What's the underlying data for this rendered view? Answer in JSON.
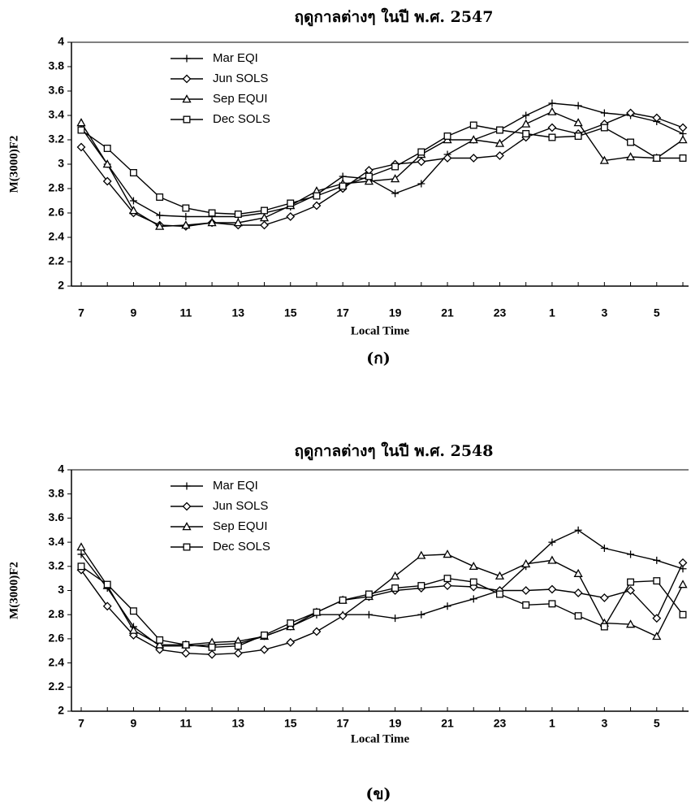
{
  "chart_data": [
    {
      "type": "line",
      "title": "ฤดูกาลต่างๆ ในปี พ.ศ. 2547",
      "caption": "(ก)",
      "x_label": "Local Time",
      "y_label": "M(3000)F2",
      "categories": [
        "7",
        null,
        "9",
        null,
        "11",
        null,
        "13",
        null,
        "15",
        null,
        "17",
        null,
        "19",
        null,
        "21",
        null,
        "23",
        null,
        "1",
        null,
        "3",
        null,
        "5",
        null
      ],
      "ylim": [
        2,
        4
      ],
      "yticks": [
        2,
        2.2,
        2.4,
        2.6,
        2.8,
        3,
        3.2,
        3.4,
        3.6,
        3.8,
        4
      ],
      "grid": false,
      "legend": "upper left",
      "series": [
        {
          "name": "Mar EQI",
          "color": "#000000",
          "marker": "plus",
          "values": [
            3.3,
            3.0,
            2.7,
            2.58,
            2.57,
            2.57,
            2.57,
            2.6,
            2.65,
            2.75,
            2.9,
            2.88,
            2.76,
            2.84,
            3.08,
            3.2,
            3.28,
            3.4,
            3.5,
            3.48,
            3.42,
            3.4,
            3.35,
            3.25
          ]
        },
        {
          "name": "Jun SOLS",
          "color": "#000000",
          "marker": "diamond",
          "values": [
            3.14,
            2.86,
            2.6,
            2.5,
            2.49,
            2.52,
            2.5,
            2.5,
            2.57,
            2.66,
            2.8,
            2.95,
            3.0,
            3.02,
            3.05,
            3.05,
            3.07,
            3.22,
            3.3,
            3.25,
            3.33,
            3.42,
            3.38,
            3.3
          ]
        },
        {
          "name": "Sep EQUI",
          "color": "#000000",
          "marker": "triangle",
          "values": [
            3.34,
            3.0,
            2.62,
            2.49,
            2.5,
            2.52,
            2.52,
            2.56,
            2.66,
            2.78,
            2.84,
            2.86,
            2.88,
            3.08,
            3.2,
            3.2,
            3.17,
            3.33,
            3.43,
            3.34,
            3.03,
            3.06,
            3.05,
            3.2
          ]
        },
        {
          "name": "Dec SOLS",
          "color": "#000000",
          "marker": "square",
          "values": [
            3.28,
            3.13,
            2.93,
            2.73,
            2.64,
            2.6,
            2.59,
            2.62,
            2.68,
            2.74,
            2.82,
            2.9,
            2.98,
            3.1,
            3.23,
            3.32,
            3.28,
            3.25,
            3.22,
            3.23,
            3.3,
            3.18,
            3.05,
            3.05
          ]
        }
      ]
    },
    {
      "type": "line",
      "title": "ฤดูกาลต่างๆ ในปี พ.ศ. 2548",
      "caption": "(ข)",
      "x_label": "Local Time",
      "y_label": "M(3000)F2",
      "categories": [
        "7",
        null,
        "9",
        null,
        "11",
        null,
        "13",
        null,
        "15",
        null,
        "17",
        null,
        "19",
        null,
        "21",
        null,
        "23",
        null,
        "1",
        null,
        "3",
        null,
        "5",
        null
      ],
      "ylim": [
        2,
        4
      ],
      "yticks": [
        2,
        2.2,
        2.4,
        2.6,
        2.8,
        3,
        3.2,
        3.4,
        3.6,
        3.8,
        4
      ],
      "grid": false,
      "legend": "upper left",
      "series": [
        {
          "name": "Mar EQI",
          "color": "#000000",
          "marker": "plus",
          "values": [
            3.3,
            3.02,
            2.7,
            2.54,
            2.54,
            2.55,
            2.56,
            2.62,
            2.7,
            2.8,
            2.8,
            2.8,
            2.77,
            2.8,
            2.87,
            2.93,
            3.0,
            3.2,
            3.4,
            3.5,
            3.35,
            3.3,
            3.25,
            3.18
          ]
        },
        {
          "name": "Jun SOLS",
          "color": "#000000",
          "marker": "diamond",
          "values": [
            3.17,
            2.87,
            2.63,
            2.51,
            2.48,
            2.47,
            2.48,
            2.51,
            2.57,
            2.66,
            2.79,
            2.95,
            3.0,
            3.02,
            3.04,
            3.03,
            3.0,
            3.0,
            3.01,
            2.98,
            2.94,
            3.0,
            2.77,
            3.23
          ]
        },
        {
          "name": "Sep EQUI",
          "color": "#000000",
          "marker": "triangle",
          "values": [
            3.36,
            3.04,
            2.67,
            2.55,
            2.55,
            2.57,
            2.58,
            2.62,
            2.7,
            2.82,
            2.92,
            2.95,
            3.12,
            3.29,
            3.3,
            3.2,
            3.12,
            3.22,
            3.25,
            3.14,
            2.73,
            2.72,
            2.62,
            3.05
          ]
        },
        {
          "name": "Dec SOLS",
          "color": "#000000",
          "marker": "square",
          "values": [
            3.2,
            3.05,
            2.83,
            2.59,
            2.55,
            2.53,
            2.54,
            2.63,
            2.73,
            2.82,
            2.92,
            2.97,
            3.02,
            3.04,
            3.1,
            3.07,
            2.97,
            2.88,
            2.89,
            2.79,
            2.7,
            3.07,
            3.08,
            2.8
          ]
        }
      ]
    }
  ]
}
